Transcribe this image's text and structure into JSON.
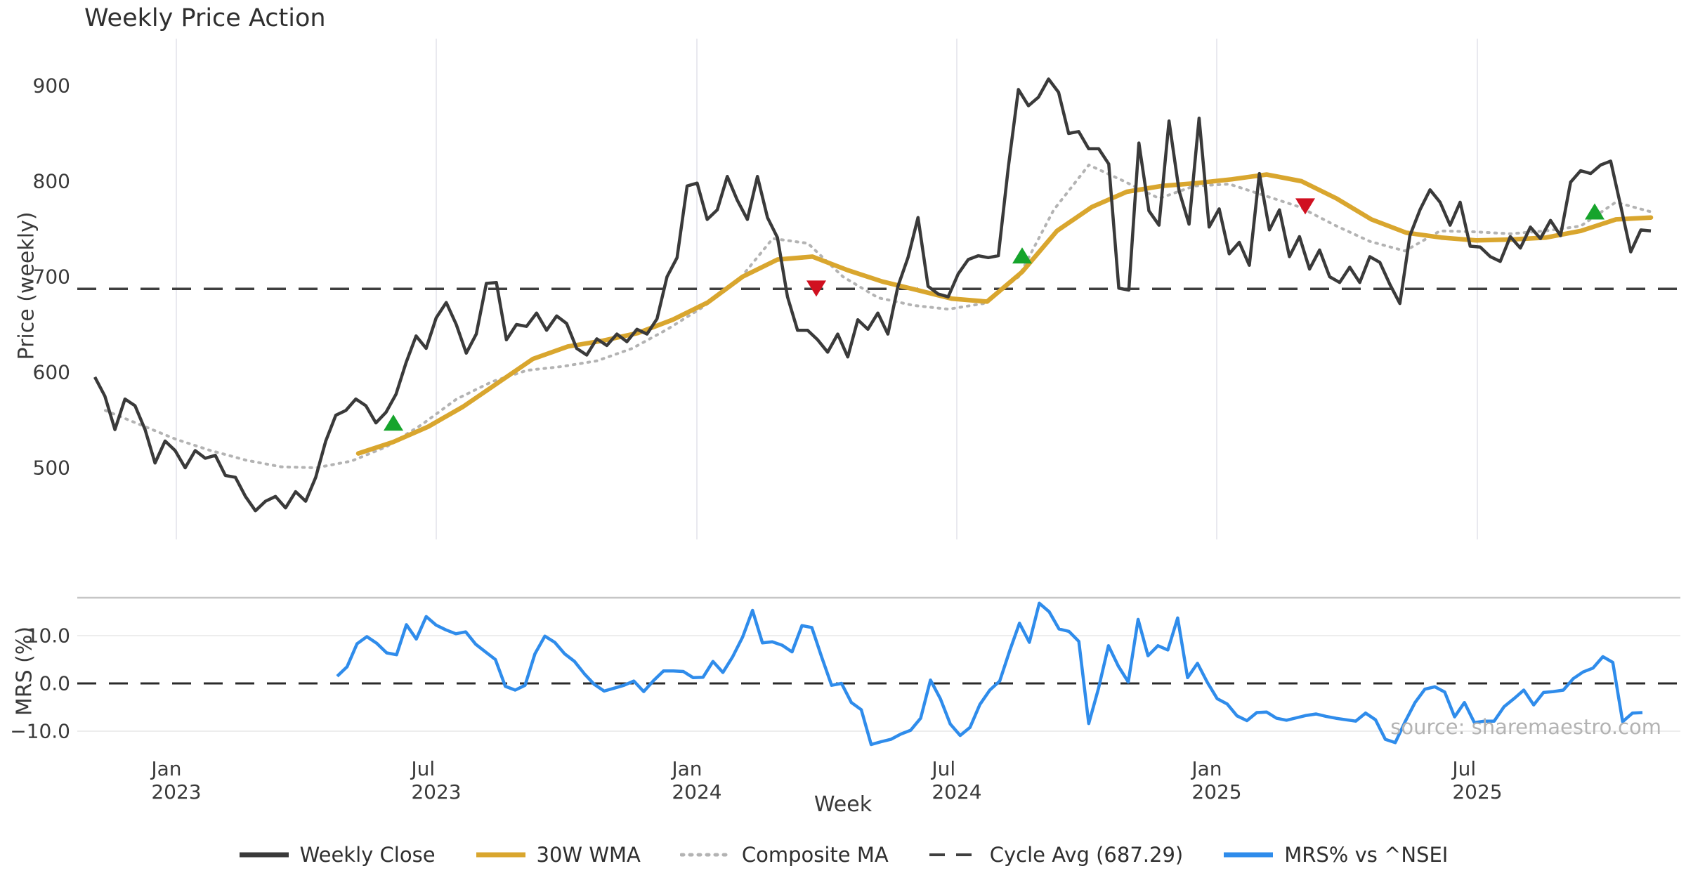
{
  "title": "Weekly Price Action",
  "source_note": "source: sharemaestro.com",
  "axes": {
    "price": {
      "label": "Price (weekly)",
      "ticks": [
        "900",
        "800",
        "700",
        "600",
        "500"
      ]
    },
    "mrs": {
      "label": "MRS (%)",
      "ticks": [
        "10.0",
        "0.0",
        "−10.0"
      ]
    },
    "x": {
      "label": "Week",
      "ticks": [
        "Jan 2023",
        "Jul 2023",
        "Jan 2024",
        "Jul 2024",
        "Jan 2025",
        "Jul 2025"
      ]
    }
  },
  "legend": [
    {
      "label": "Weekly Close",
      "color": "#3a3a3a",
      "style": "solid",
      "icon": "line-solid-dark"
    },
    {
      "label": "30W WMA",
      "color": "#d9a62e",
      "style": "solid",
      "icon": "line-solid-gold"
    },
    {
      "label": "Composite MA",
      "color": "#b3b3b3",
      "style": "dotted",
      "icon": "line-dotted-gray"
    },
    {
      "label": "Cycle Avg (687.29)",
      "color": "#3f3f3f",
      "style": "dashed",
      "icon": "line-dashed-dark"
    },
    {
      "label": "MRS% vs ^NSEI",
      "color": "#2f8ceb",
      "style": "solid",
      "icon": "line-solid-blue"
    }
  ],
  "chart_data": {
    "type": "line",
    "title": "Weekly Price Action",
    "xlabel": "Week",
    "x_domain": [
      "2022-11",
      "2025-10"
    ],
    "x_tick_labels": [
      "Jan 2023",
      "Jul 2023",
      "Jan 2024",
      "Jul 2024",
      "Jan 2025",
      "Jul 2025"
    ],
    "panels": [
      {
        "name": "price",
        "ylabel": "Price (weekly)",
        "ylim": [
          425,
          950
        ],
        "yticks": [
          900,
          800,
          700,
          600,
          500
        ],
        "grid": "vertical"
      },
      {
        "name": "mrs",
        "ylabel": "MRS (%)",
        "ylim": [
          -15,
          18
        ],
        "yticks": [
          10.0,
          0.0,
          -10.0
        ],
        "grid": "horizontal"
      }
    ],
    "cycle_avg": 687.29,
    "series": [
      {
        "name": "Weekly Close",
        "panel": "price",
        "color": "#3a3a3a",
        "style": "solid",
        "start": "2022-11",
        "end": "2025-10",
        "interval": "weekly",
        "values": [
          595,
          575,
          540,
          572,
          565,
          540,
          505,
          528,
          518,
          500,
          518,
          510,
          513,
          492,
          490,
          470,
          455,
          465,
          470,
          458,
          475,
          465,
          490,
          528,
          555,
          560,
          572,
          565,
          547,
          558,
          577,
          610,
          638,
          625,
          657,
          673,
          650,
          620,
          640,
          693,
          694,
          634,
          650,
          648,
          662,
          644,
          659,
          651,
          625,
          618,
          635,
          628,
          640,
          632,
          645,
          640,
          656,
          700,
          720,
          795,
          798,
          760,
          770,
          805,
          780,
          760,
          805,
          762,
          741,
          679,
          644,
          644,
          634,
          621,
          640,
          616,
          655,
          645,
          662,
          640,
          690,
          720,
          762,
          690,
          682,
          679,
          703,
          718,
          722,
          720,
          722,
          815,
          896,
          879,
          888,
          907,
          893,
          850,
          852,
          834,
          834,
          818,
          688,
          686,
          840,
          769,
          754,
          863,
          790,
          755,
          866,
          752,
          771,
          724,
          736,
          712,
          808,
          749,
          770,
          721,
          742,
          708,
          728,
          700,
          694,
          710,
          694,
          721,
          715,
          692,
          672,
          743,
          770,
          791,
          778,
          754,
          778,
          732,
          731,
          721,
          716,
          742,
          730,
          752,
          740,
          759,
          743,
          799,
          811,
          808,
          817,
          821,
          774,
          726,
          749,
          748
        ]
      },
      {
        "name": "30W WMA",
        "panel": "price",
        "color": "#d9a62e",
        "style": "solid",
        "start": "2023-05",
        "end": "2025-10",
        "values": [
          515,
          527,
          543,
          564,
          589,
          614,
          627,
          633,
          641,
          655,
          673,
          700,
          718,
          721,
          707,
          695,
          686,
          677,
          674,
          705,
          748,
          773,
          789,
          795,
          798,
          802,
          807,
          800,
          782,
          760,
          746,
          741,
          738,
          739,
          741,
          748,
          760,
          762
        ]
      },
      {
        "name": "Composite MA",
        "panel": "price",
        "color": "#b3b3b3",
        "style": "dotted",
        "start": "2022-11",
        "end": "2025-10",
        "values": [
          560,
          545,
          530,
          518,
          508,
          501,
          500,
          507,
          522,
          545,
          572,
          590,
          602,
          606,
          612,
          625,
          645,
          668,
          695,
          740,
          735,
          700,
          678,
          670,
          666,
          672,
          700,
          770,
          817,
          800,
          782,
          795,
          797,
          785,
          773,
          754,
          737,
          727,
          748,
          747,
          745,
          748,
          753,
          778,
          768
        ]
      },
      {
        "name": "Cycle Avg",
        "panel": "price",
        "color": "#3f3f3f",
        "style": "dashed",
        "value": 687.29
      },
      {
        "name": "MRS% vs ^NSEI",
        "panel": "mrs",
        "color": "#2f8ceb",
        "style": "solid",
        "start": "2023-04",
        "end": "2025-10",
        "interval": "weekly",
        "values": [
          1.5,
          3.5,
          8.3,
          9.8,
          8.4,
          6.4,
          6.0,
          12.3,
          9.3,
          14.0,
          12.2,
          11.2,
          10.4,
          10.8,
          8.2,
          6.6,
          5.0,
          -0.6,
          -1.4,
          -0.4,
          6.2,
          9.9,
          8.6,
          6.2,
          4.6,
          2.0,
          -0.2,
          -1.6,
          -1.0,
          -0.4,
          0.5,
          -1.7,
          0.6,
          2.6,
          2.6,
          2.5,
          1.2,
          1.3,
          4.6,
          2.3,
          5.6,
          9.7,
          15.3,
          8.5,
          8.7,
          8.0,
          6.6,
          12.1,
          11.7,
          5.5,
          -0.4,
          0.0,
          -4.0,
          -5.5,
          -12.8,
          -12.2,
          -11.7,
          -10.6,
          -9.8,
          -7.3,
          0.7,
          -3.2,
          -8.5,
          -10.9,
          -9.2,
          -4.4,
          -1.4,
          0.5,
          6.8,
          12.6,
          8.6,
          16.8,
          15.0,
          11.4,
          10.9,
          8.8,
          -8.4,
          -1.0,
          7.9,
          3.6,
          0.3,
          13.4,
          5.8,
          7.9,
          7.0,
          13.7,
          1.2,
          4.2,
          0.2,
          -3.2,
          -4.3,
          -6.8,
          -7.8,
          -6.1,
          -6.0,
          -7.3,
          -7.7,
          -7.2,
          -6.7,
          -6.4,
          -6.9,
          -7.3,
          -7.6,
          -7.9,
          -6.2,
          -7.6,
          -11.7,
          -12.4,
          -8.0,
          -4.0,
          -1.2,
          -0.7,
          -1.8,
          -7.0,
          -4.0,
          -8.2,
          -7.9,
          -7.9,
          -4.9,
          -3.2,
          -1.4,
          -4.5,
          -1.9,
          -1.7,
          -1.4,
          1.0,
          2.4,
          3.2,
          5.6,
          4.4,
          -8.0,
          -6.2,
          -6.1
        ]
      }
    ],
    "markers": {
      "buy": {
        "color": "#16a42c",
        "shape": "triangle-up",
        "points": [
          {
            "date": "2023-06",
            "value": 547
          },
          {
            "date": "2024-08",
            "value": 722
          },
          {
            "date": "2025-09",
            "value": 768
          }
        ]
      },
      "sell": {
        "color": "#d01020",
        "shape": "triangle-down",
        "points": [
          {
            "date": "2024-03",
            "value": 688
          },
          {
            "date": "2025-03",
            "value": 774
          }
        ]
      }
    },
    "legend_position": "bottom-center",
    "colors": {
      "close": "#3a3a3a",
      "wma": "#d9a62e",
      "composite": "#b3b3b3",
      "cycle": "#3f3f3f",
      "mrs": "#2f8ceb",
      "grid": "#e9e9ef",
      "mrs_grid": "#ededed",
      "panel_spine": "#c6c6c6"
    }
  }
}
